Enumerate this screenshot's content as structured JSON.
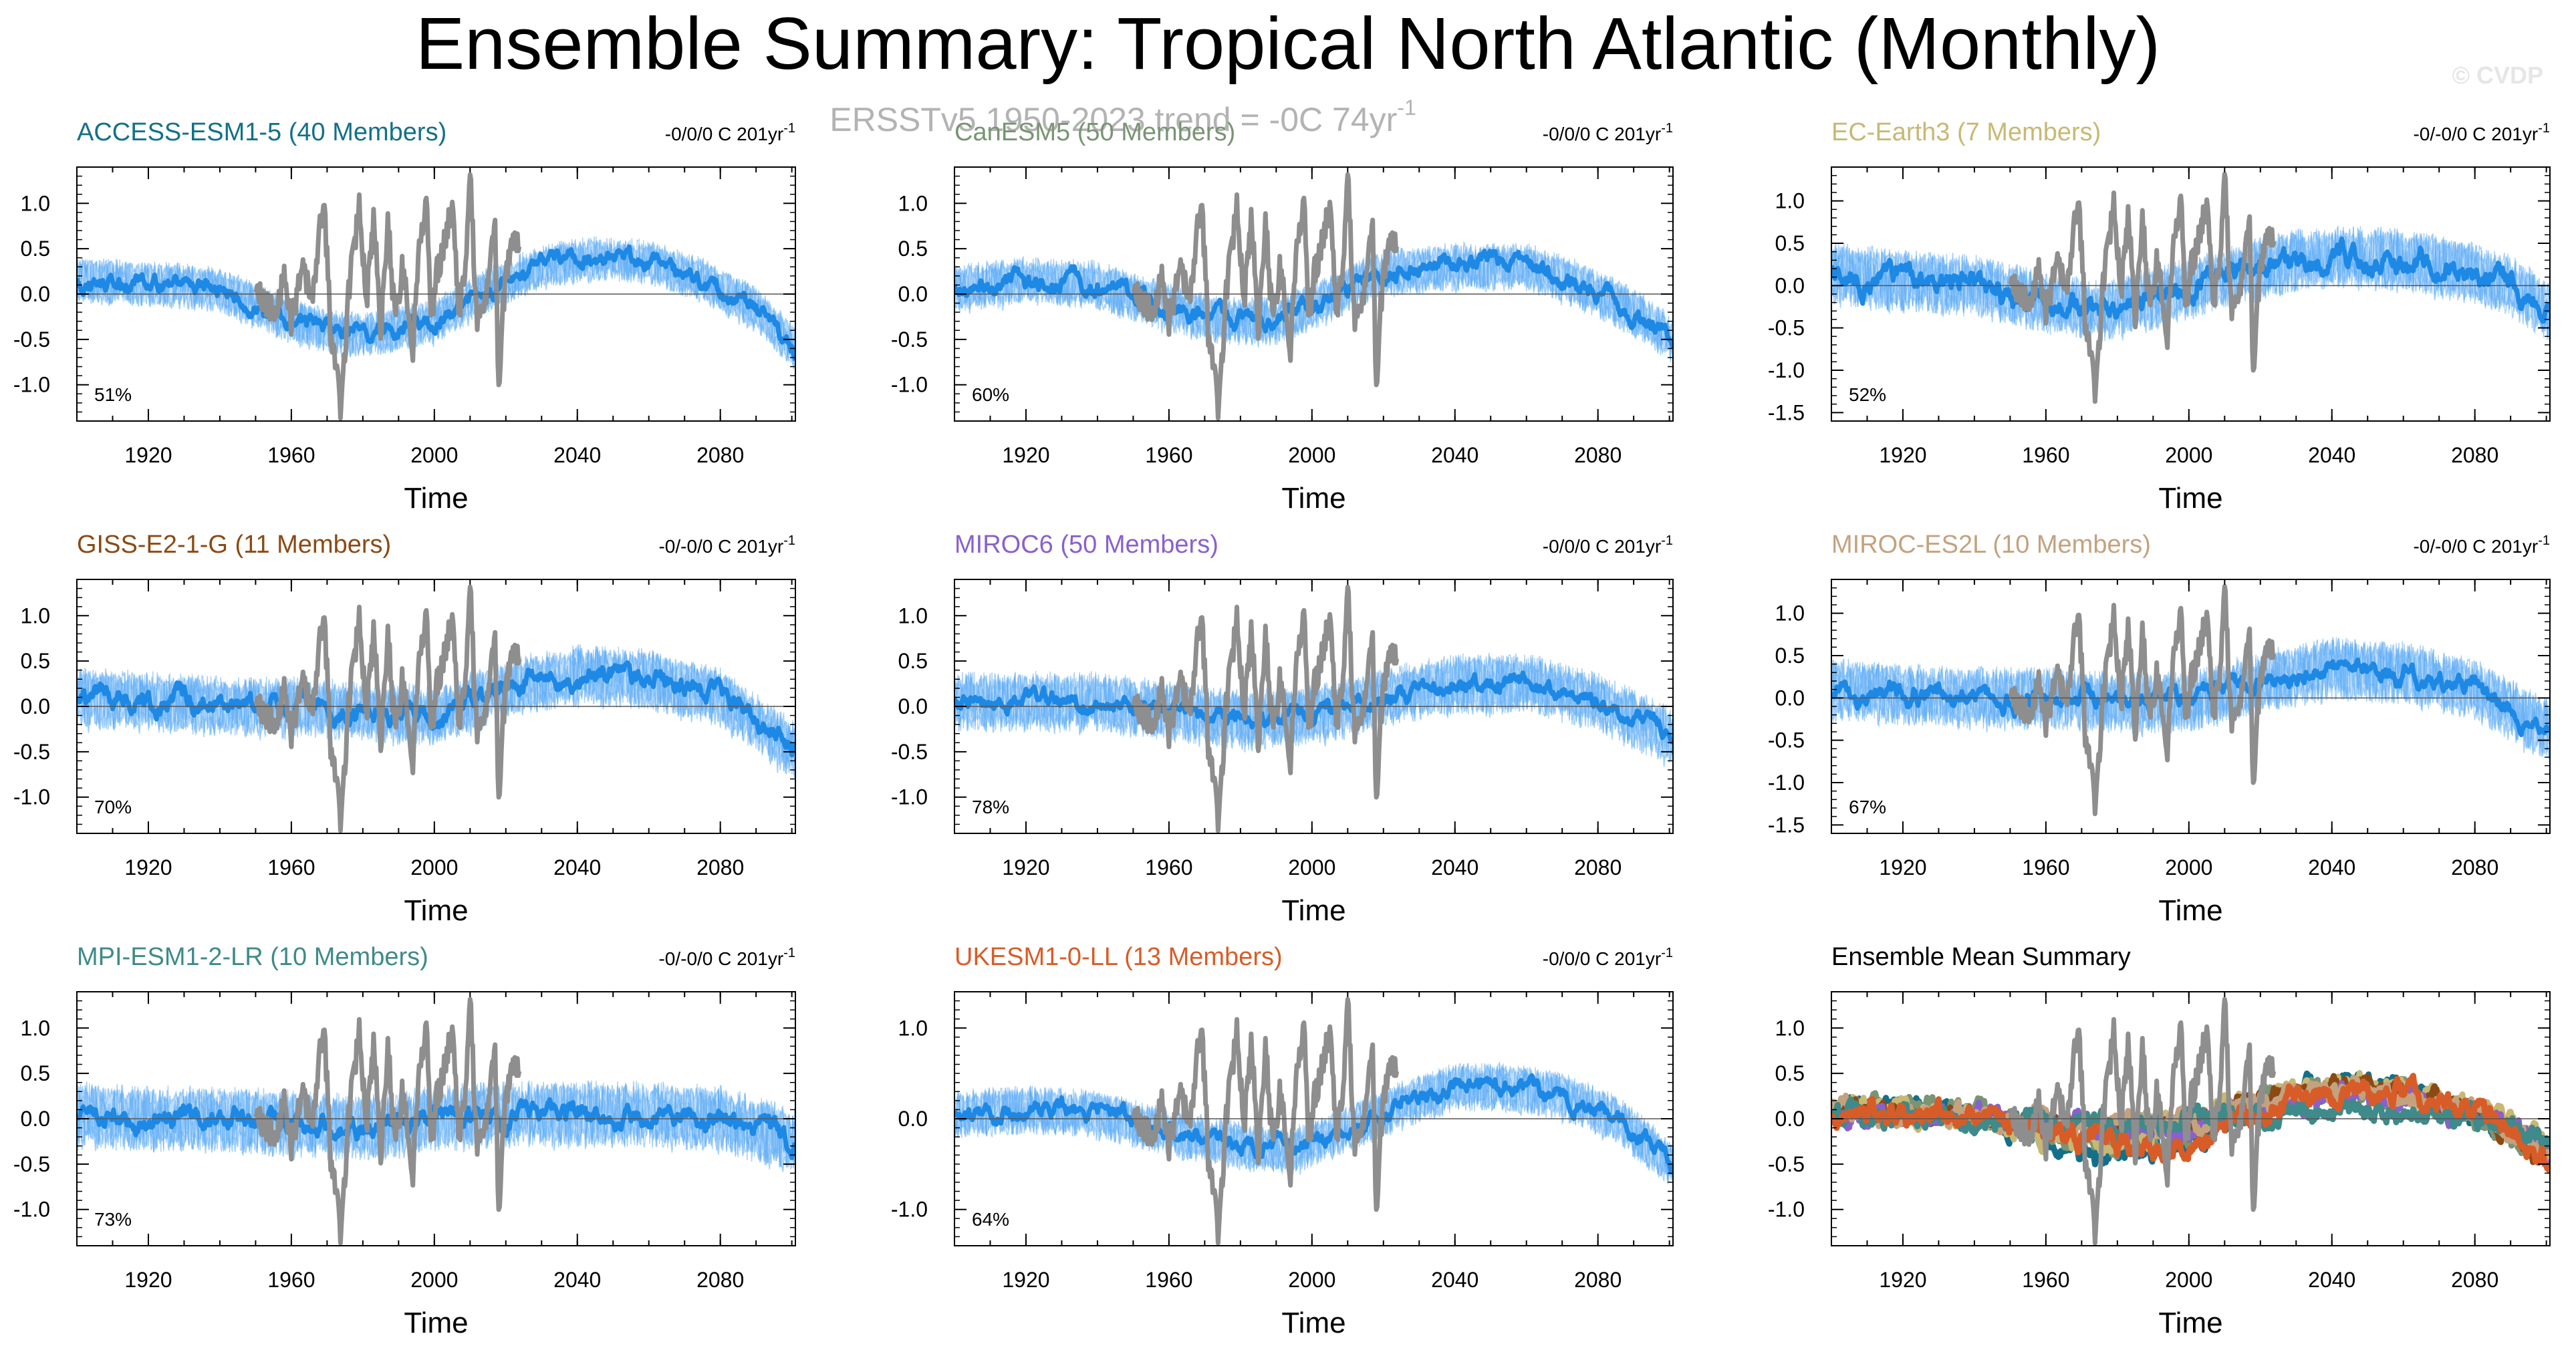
{
  "figure": {
    "title": "Ensemble Summary: Tropical North Atlantic (Monthly)",
    "subtitle": "ERSSTv5 1950-2023 trend = -0C 74yr",
    "subtitle_sup": "-1",
    "watermark": "© CVDP",
    "xlabel": "Time",
    "x_ticks": [
      1920,
      1960,
      2000,
      2040,
      2080
    ],
    "colors": {
      "ensemble_spread": "#5aaaf5",
      "ensemble_mean": "#1e88e5",
      "observations": "#8e8e8e",
      "zero_line": "#555555"
    }
  },
  "chart_data": [
    {
      "type": "line",
      "model": "ACCESS-ESM1-5 (40 Members)",
      "title_color": "#13708a",
      "trend_text": "-0/0/0 C 201yr",
      "trend_sup": "-1",
      "percent": "51%",
      "xlim": [
        1900,
        2101
      ],
      "ylim": [
        -1.4,
        1.4
      ],
      "yticks": [
        "1.0",
        "0.5",
        "0.0",
        "-0.5",
        "-1.0"
      ],
      "mean_anchors": [
        [
          1900,
          0.15
        ],
        [
          1920,
          0.12
        ],
        [
          1940,
          0.05
        ],
        [
          1960,
          -0.3
        ],
        [
          1975,
          -0.45
        ],
        [
          1985,
          -0.42
        ],
        [
          2000,
          -0.3
        ],
        [
          2015,
          0.05
        ],
        [
          2030,
          0.3
        ],
        [
          2045,
          0.4
        ],
        [
          2060,
          0.35
        ],
        [
          2075,
          0.15
        ],
        [
          2090,
          -0.15
        ],
        [
          2101,
          -0.6
        ]
      ],
      "spread": 0.15,
      "noise": 0.12
    },
    {
      "type": "line",
      "model": "CanESM5 (50 Members)",
      "title_color": "#7a9474",
      "trend_text": "-0/0/0 C 201yr",
      "trend_sup": "-1",
      "percent": "60%",
      "xlim": [
        1900,
        2101
      ],
      "ylim": [
        -1.4,
        1.4
      ],
      "yticks": [
        "1.0",
        "0.5",
        "0.0",
        "-0.5",
        "-1.0"
      ],
      "mean_anchors": [
        [
          1900,
          0.05
        ],
        [
          1920,
          0.15
        ],
        [
          1940,
          0.1
        ],
        [
          1960,
          -0.15
        ],
        [
          1975,
          -0.3
        ],
        [
          1990,
          -0.3
        ],
        [
          2005,
          -0.05
        ],
        [
          2020,
          0.25
        ],
        [
          2040,
          0.3
        ],
        [
          2060,
          0.3
        ],
        [
          2075,
          0.1
        ],
        [
          2090,
          -0.2
        ],
        [
          2101,
          -0.5
        ]
      ],
      "spread": 0.16,
      "noise": 0.13
    },
    {
      "type": "line",
      "model": "EC-Earth3 (7 Members)",
      "title_color": "#c8b873",
      "trend_text": "-0/-0/0 C 201yr",
      "trend_sup": "-1",
      "percent": "52%",
      "xlim": [
        1900,
        2101
      ],
      "ylim": [
        -1.6,
        1.4
      ],
      "yticks": [
        "1.0",
        "0.5",
        "0.0",
        "-0.5",
        "-1.0",
        "-1.5"
      ],
      "mean_anchors": [
        [
          1900,
          0.15
        ],
        [
          1920,
          0.05
        ],
        [
          1940,
          0.0
        ],
        [
          1960,
          -0.2
        ],
        [
          1975,
          -0.3
        ],
        [
          1990,
          -0.15
        ],
        [
          2010,
          0.1
        ],
        [
          2030,
          0.3
        ],
        [
          2045,
          0.35
        ],
        [
          2060,
          0.3
        ],
        [
          2075,
          0.2
        ],
        [
          2090,
          0.0
        ],
        [
          2101,
          -0.3
        ]
      ],
      "spread": 0.22,
      "noise": 0.18
    },
    {
      "type": "line",
      "model": "GISS-E2-1-G (11 Members)",
      "title_color": "#8b4a14",
      "trend_text": "-0/-0/0 C 201yr",
      "trend_sup": "-1",
      "percent": "70%",
      "xlim": [
        1900,
        2101
      ],
      "ylim": [
        -1.4,
        1.4
      ],
      "yticks": [
        "1.0",
        "0.5",
        "0.0",
        "-0.5",
        "-1.0"
      ],
      "mean_anchors": [
        [
          1900,
          0.1
        ],
        [
          1920,
          0.05
        ],
        [
          1940,
          0.0
        ],
        [
          1960,
          0.0
        ],
        [
          1980,
          -0.05
        ],
        [
          2000,
          -0.1
        ],
        [
          2020,
          0.2
        ],
        [
          2040,
          0.35
        ],
        [
          2060,
          0.3
        ],
        [
          2080,
          0.1
        ],
        [
          2101,
          -0.5
        ]
      ],
      "spread": 0.2,
      "noise": 0.15
    },
    {
      "type": "line",
      "model": "MIROC6 (50 Members)",
      "title_color": "#8a60cc",
      "trend_text": "-0/0/0 C 201yr",
      "trend_sup": "-1",
      "percent": "78%",
      "xlim": [
        1900,
        2101
      ],
      "ylim": [
        -1.4,
        1.4
      ],
      "yticks": [
        "1.0",
        "0.5",
        "0.0",
        "-0.5",
        "-1.0"
      ],
      "mean_anchors": [
        [
          1900,
          0.05
        ],
        [
          1920,
          0.05
        ],
        [
          1940,
          0.05
        ],
        [
          1960,
          -0.05
        ],
        [
          1980,
          -0.15
        ],
        [
          2000,
          -0.1
        ],
        [
          2020,
          0.1
        ],
        [
          2040,
          0.25
        ],
        [
          2060,
          0.25
        ],
        [
          2080,
          0.05
        ],
        [
          2101,
          -0.35
        ]
      ],
      "spread": 0.2,
      "noise": 0.12
    },
    {
      "type": "line",
      "model": "MIROC-ES2L (10 Members)",
      "title_color": "#c4a27e",
      "trend_text": "-0/-0/0 C 201yr",
      "trend_sup": "-1",
      "percent": "67%",
      "xlim": [
        1900,
        2101
      ],
      "ylim": [
        -1.6,
        1.4
      ],
      "yticks": [
        "1.0",
        "0.5",
        "0.0",
        "-0.5",
        "-1.0",
        "-1.5"
      ],
      "mean_anchors": [
        [
          1900,
          0.1
        ],
        [
          1920,
          0.05
        ],
        [
          1940,
          0.0
        ],
        [
          1960,
          0.0
        ],
        [
          1980,
          -0.05
        ],
        [
          2000,
          -0.05
        ],
        [
          2020,
          0.2
        ],
        [
          2040,
          0.35
        ],
        [
          2060,
          0.3
        ],
        [
          2080,
          0.1
        ],
        [
          2101,
          -0.4
        ]
      ],
      "spread": 0.22,
      "noise": 0.15
    },
    {
      "type": "line",
      "model": "MPI-ESM1-2-LR (10 Members)",
      "title_color": "#3f8a8a",
      "trend_text": "-0/-0/0 C 201yr",
      "trend_sup": "-1",
      "percent": "73%",
      "xlim": [
        1900,
        2101
      ],
      "ylim": [
        -1.4,
        1.4
      ],
      "yticks": [
        "1.0",
        "0.5",
        "0.0",
        "-0.5",
        "-1.0"
      ],
      "mean_anchors": [
        [
          1900,
          0.05
        ],
        [
          1920,
          0.0
        ],
        [
          1940,
          0.0
        ],
        [
          1960,
          -0.05
        ],
        [
          1980,
          -0.1
        ],
        [
          2000,
          0.0
        ],
        [
          2020,
          0.05
        ],
        [
          2040,
          0.05
        ],
        [
          2060,
          0.05
        ],
        [
          2080,
          0.0
        ],
        [
          2101,
          -0.25
        ]
      ],
      "spread": 0.22,
      "noise": 0.15
    },
    {
      "type": "line",
      "model": "UKESM1-0-LL (13 Members)",
      "title_color": "#d85c28",
      "trend_text": "-0/0/0 C 201yr",
      "trend_sup": "-1",
      "percent": "64%",
      "xlim": [
        1900,
        2101
      ],
      "ylim": [
        -1.4,
        1.4
      ],
      "yticks": [
        "1.0",
        "0.0",
        "-1.0"
      ],
      "mean_anchors": [
        [
          1900,
          0.05
        ],
        [
          1920,
          0.1
        ],
        [
          1940,
          0.05
        ],
        [
          1960,
          -0.15
        ],
        [
          1980,
          -0.3
        ],
        [
          1995,
          -0.35
        ],
        [
          2010,
          -0.1
        ],
        [
          2025,
          0.15
        ],
        [
          2040,
          0.35
        ],
        [
          2055,
          0.35
        ],
        [
          2070,
          0.25
        ],
        [
          2085,
          0.0
        ],
        [
          2101,
          -0.5
        ]
      ],
      "spread": 0.16,
      "noise": 0.12
    },
    {
      "type": "line",
      "model": "Ensemble Mean Summary",
      "title_color": "#000000",
      "trend_text": "",
      "trend_sup": "",
      "percent": "",
      "xlim": [
        1900,
        2101
      ],
      "ylim": [
        -1.4,
        1.4
      ],
      "yticks": [
        "1.0",
        "0.5",
        "0.0",
        "-0.5",
        "-1.0"
      ],
      "summary": true,
      "series": [
        {
          "name": "ACCESS-ESM1-5",
          "color": "#13708a"
        },
        {
          "name": "CanESM5",
          "color": "#7a9474"
        },
        {
          "name": "EC-Earth3",
          "color": "#c8b873"
        },
        {
          "name": "GISS-E2-1-G",
          "color": "#8b4a14"
        },
        {
          "name": "MIROC6",
          "color": "#8a60cc"
        },
        {
          "name": "MIROC-ES2L",
          "color": "#c4a27e"
        },
        {
          "name": "MPI-ESM1-2-LR",
          "color": "#3f8a8a"
        },
        {
          "name": "UKESM1-0-LL",
          "color": "#d85c28"
        }
      ]
    }
  ],
  "observations": {
    "name": "ERSSTv5",
    "years": [
      1950,
      2023
    ],
    "anchors": [
      [
        1950,
        0.0
      ],
      [
        1955,
        -0.2
      ],
      [
        1958,
        0.15
      ],
      [
        1960,
        -0.3
      ],
      [
        1963,
        0.3
      ],
      [
        1966,
        -0.05
      ],
      [
        1969,
        1.1
      ],
      [
        1971,
        -0.4
      ],
      [
        1974,
        -1.3
      ],
      [
        1976,
        0.0
      ],
      [
        1979,
        1.0
      ],
      [
        1981,
        -0.1
      ],
      [
        1983,
        0.9
      ],
      [
        1985,
        -0.45
      ],
      [
        1987,
        0.8
      ],
      [
        1989,
        -0.3
      ],
      [
        1991,
        0.3
      ],
      [
        1994,
        -0.6
      ],
      [
        1996,
        0.7
      ],
      [
        1998,
        1.0
      ],
      [
        1999,
        -0.3
      ],
      [
        2001,
        0.3
      ],
      [
        2003,
        0.6
      ],
      [
        2005,
        1.0
      ],
      [
        2007,
        -0.2
      ],
      [
        2009,
        0.5
      ],
      [
        2010,
        1.3
      ],
      [
        2012,
        -0.4
      ],
      [
        2015,
        0.1
      ],
      [
        2017,
        0.8
      ],
      [
        2018,
        -1.1
      ],
      [
        2019,
        -0.2
      ],
      [
        2021,
        0.5
      ],
      [
        2023,
        0.6
      ]
    ]
  }
}
